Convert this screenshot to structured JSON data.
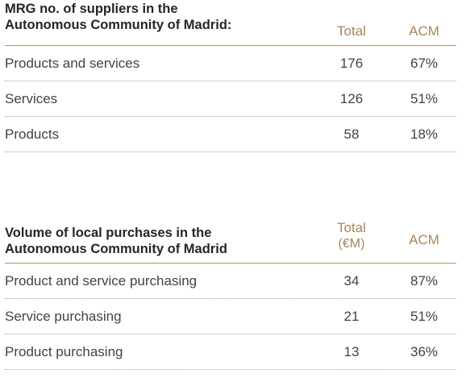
{
  "tables": [
    {
      "title_line1": "MRG no. of suppliers in the",
      "title_line2": "Autonomous Community of Madrid:",
      "col_total": "Total",
      "col_total_unit": "",
      "col_acm": "ACM",
      "rows": [
        {
          "label": "Products and services",
          "total": "176",
          "acm": "67%"
        },
        {
          "label": "Services",
          "total": "126",
          "acm": "51%"
        },
        {
          "label": "Products",
          "total": "58",
          "acm": "18%"
        }
      ]
    },
    {
      "title_line1": "Volume of local purchases in the",
      "title_line2": "Autonomous Community of Madrid",
      "col_total": "Total",
      "col_total_unit": "(€M)",
      "col_acm": "ACM",
      "rows": [
        {
          "label": "Product and service purchasing",
          "total": "34",
          "acm": "87%"
        },
        {
          "label": "Service purchasing",
          "total": "21",
          "acm": "51%"
        },
        {
          "label": "Product purchasing",
          "total": "13",
          "acm": "36%"
        }
      ]
    }
  ],
  "colors": {
    "accent": "#a8865d",
    "rule": "#b0916b",
    "text": "#424242",
    "heading": "#262626"
  }
}
